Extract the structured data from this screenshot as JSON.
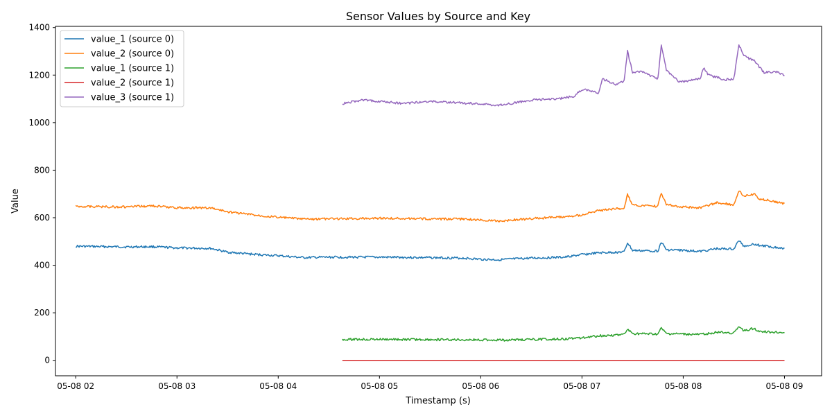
{
  "chart_data": {
    "type": "line",
    "title": "Sensor Values by Source and Key",
    "xlabel": "Timestamp (s)",
    "ylabel": "Value",
    "xlim": [
      "05-08 01:48",
      "05-08 09:22"
    ],
    "ylim": [
      -65,
      1405
    ],
    "x_ticks": [
      "05-08 02",
      "05-08 03",
      "05-08 04",
      "05-08 05",
      "05-08 06",
      "05-08 07",
      "05-08 08",
      "05-08 09"
    ],
    "y_ticks": [
      0,
      200,
      400,
      600,
      800,
      1000,
      1200,
      1400
    ],
    "grid": false,
    "legend_position": "top-left",
    "series": [
      {
        "name": "value_1 (source 0)",
        "color": "#1f77b4",
        "x": [
          "05-08 02:00",
          "05-08 02:30",
          "05-08 02:45",
          "05-08 03:00",
          "05-08 03:20",
          "05-08 03:30",
          "05-08 03:45",
          "05-08 04:00",
          "05-08 04:15",
          "05-08 04:30",
          "05-08 05:00",
          "05-08 05:30",
          "05-08 05:50",
          "05-08 06:00",
          "05-08 06:10",
          "05-08 06:30",
          "05-08 06:50",
          "05-08 07:00",
          "05-08 07:10",
          "05-08 07:25",
          "05-08 07:27",
          "05-08 07:30",
          "05-08 07:45",
          "05-08 07:47",
          "05-08 07:50",
          "05-08 08:00",
          "05-08 08:10",
          "05-08 08:20",
          "05-08 08:30",
          "05-08 08:33",
          "05-08 08:36",
          "05-08 08:42",
          "05-08 08:45",
          "05-08 09:00"
        ],
        "y": [
          480,
          477,
          478,
          473,
          471,
          455,
          446,
          440,
          432,
          434,
          434,
          432,
          430,
          425,
          423,
          430,
          434,
          445,
          452,
          456,
          495,
          462,
          460,
          498,
          465,
          463,
          458,
          470,
          468,
          505,
          480,
          490,
          484,
          471
        ]
      },
      {
        "name": "value_2 (source 0)",
        "color": "#ff7f0e",
        "x": [
          "05-08 02:00",
          "05-08 02:30",
          "05-08 02:45",
          "05-08 03:00",
          "05-08 03:20",
          "05-08 03:30",
          "05-08 03:45",
          "05-08 04:00",
          "05-08 04:15",
          "05-08 04:30",
          "05-08 05:00",
          "05-08 05:30",
          "05-08 05:50",
          "05-08 06:00",
          "05-08 06:10",
          "05-08 06:30",
          "05-08 06:50",
          "05-08 07:00",
          "05-08 07:10",
          "05-08 07:25",
          "05-08 07:27",
          "05-08 07:30",
          "05-08 07:45",
          "05-08 07:47",
          "05-08 07:50",
          "05-08 08:00",
          "05-08 08:10",
          "05-08 08:20",
          "05-08 08:30",
          "05-08 08:33",
          "05-08 08:36",
          "05-08 08:42",
          "05-08 08:45",
          "05-08 09:00"
        ],
        "y": [
          648,
          645,
          650,
          642,
          641,
          625,
          612,
          602,
          594,
          595,
          598,
          595,
          594,
          590,
          586,
          596,
          604,
          612,
          630,
          640,
          698,
          652,
          648,
          705,
          655,
          645,
          642,
          663,
          655,
          715,
          690,
          700,
          680,
          660
        ]
      },
      {
        "name": "value_1 (source 1)",
        "color": "#2ca02c",
        "x": [
          "05-08 04:38",
          "05-08 05:00",
          "05-08 05:30",
          "05-08 06:00",
          "05-08 06:15",
          "05-08 06:30",
          "05-08 06:50",
          "05-08 07:00",
          "05-08 07:10",
          "05-08 07:25",
          "05-08 07:27",
          "05-08 07:30",
          "05-08 07:45",
          "05-08 07:47",
          "05-08 07:50",
          "05-08 08:00",
          "05-08 08:10",
          "05-08 08:20",
          "05-08 08:30",
          "05-08 08:33",
          "05-08 08:36",
          "05-08 08:42",
          "05-08 08:45",
          "05-08 09:00"
        ],
        "y": [
          88,
          88,
          87,
          86,
          85,
          88,
          90,
          95,
          103,
          108,
          130,
          112,
          110,
          135,
          112,
          110,
          108,
          118,
          115,
          140,
          125,
          135,
          122,
          116
        ]
      },
      {
        "name": "value_2 (source 1)",
        "color": "#d62728",
        "x": [
          "05-08 04:38",
          "05-08 09:00"
        ],
        "y": [
          0,
          0
        ]
      },
      {
        "name": "value_3 (source 1)",
        "color": "#9467bd",
        "x": [
          "05-08 04:38",
          "05-08 04:50",
          "05-08 05:00",
          "05-08 05:15",
          "05-08 05:30",
          "05-08 06:00",
          "05-08 06:10",
          "05-08 06:30",
          "05-08 06:45",
          "05-08 06:55",
          "05-08 07:00",
          "05-08 07:10",
          "05-08 07:12",
          "05-08 07:20",
          "05-08 07:25",
          "05-08 07:27",
          "05-08 07:30",
          "05-08 07:35",
          "05-08 07:45",
          "05-08 07:47",
          "05-08 07:50",
          "05-08 07:58",
          "05-08 08:05",
          "05-08 08:10",
          "05-08 08:12",
          "05-08 08:15",
          "05-08 08:25",
          "05-08 08:30",
          "05-08 08:33",
          "05-08 08:36",
          "05-08 08:42",
          "05-08 08:48",
          "05-08 08:55",
          "05-08 09:00"
        ],
        "y": [
          1080,
          1095,
          1090,
          1080,
          1090,
          1078,
          1072,
          1095,
          1100,
          1110,
          1140,
          1125,
          1185,
          1160,
          1175,
          1300,
          1210,
          1215,
          1185,
          1325,
          1220,
          1170,
          1180,
          1185,
          1230,
          1200,
          1180,
          1185,
          1330,
          1280,
          1260,
          1210,
          1215,
          1198
        ]
      }
    ]
  }
}
